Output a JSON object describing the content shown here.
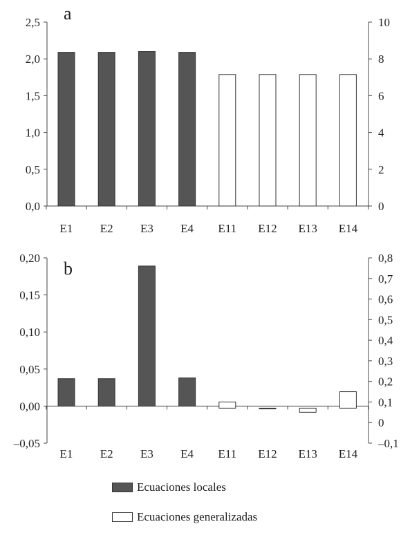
{
  "chart_data": [
    {
      "type": "bar",
      "panel_label": "a",
      "categories": [
        "E1",
        "E2",
        "E3",
        "E4",
        "E11",
        "E12",
        "E13",
        "E14"
      ],
      "series": [
        {
          "name": "Ecuaciones locales",
          "axis": "left",
          "fill": "#555555",
          "values": [
            2.09,
            2.09,
            2.1,
            2.09,
            null,
            null,
            null,
            null
          ]
        },
        {
          "name": "Ecuaciones generalizadas",
          "axis": "right",
          "fill": "#ffffff",
          "values": [
            null,
            null,
            null,
            null,
            7.15,
            7.15,
            7.15,
            7.15
          ]
        }
      ],
      "ylim_left": [
        0,
        2.5
      ],
      "yticks_left": [
        0,
        0.5,
        1.0,
        1.5,
        2.0,
        2.5
      ],
      "ytick_labels_left": [
        "0,0",
        "0,5",
        "1,0",
        "1,5",
        "2,0",
        "2,5"
      ],
      "ylim_right": [
        0,
        10
      ],
      "yticks_right": [
        0,
        2,
        4,
        6,
        8,
        10
      ],
      "ytick_labels_right": [
        "0",
        "2",
        "4",
        "6",
        "8",
        "10"
      ]
    },
    {
      "type": "bar",
      "panel_label": "b",
      "categories": [
        "E1",
        "E2",
        "E3",
        "E4",
        "E11",
        "E12",
        "E13",
        "E14"
      ],
      "series": [
        {
          "name": "Ecuaciones locales",
          "axis": "left",
          "fill": "#555555",
          "values": [
            0.037,
            0.037,
            0.189,
            0.038,
            null,
            null,
            null,
            null
          ]
        },
        {
          "name": "Ecuaciones generalizadas",
          "axis": "right",
          "fill": "#ffffff",
          "values": [
            null,
            null,
            null,
            null,
            0.1,
            0.07,
            0.05,
            0.15
          ]
        }
      ],
      "ylim_left": [
        -0.05,
        0.2
      ],
      "yticks_left": [
        -0.05,
        0.0,
        0.05,
        0.1,
        0.15,
        0.2
      ],
      "ytick_labels_left": [
        "–0,05",
        "0,00",
        "0,05",
        "0,10",
        "0,15",
        "0,20"
      ],
      "ylim_right": [
        -0.1,
        0.8
      ],
      "yticks_right": [
        -0.1,
        0,
        0.1,
        0.2,
        0.3,
        0.4,
        0.5,
        0.6,
        0.7,
        0.8
      ],
      "ytick_labels_right": [
        "–0,1",
        "0",
        "0,1",
        "0,2",
        "0,3",
        "0,4",
        "0,5",
        "0,6",
        "0,7",
        "0,8"
      ],
      "right_zero": 0.07
    }
  ],
  "legend": {
    "items": [
      {
        "label": "Ecuaciones locales",
        "color": "#555555"
      },
      {
        "label": "Ecuaciones generalizadas",
        "color": "#ffffff"
      }
    ]
  }
}
